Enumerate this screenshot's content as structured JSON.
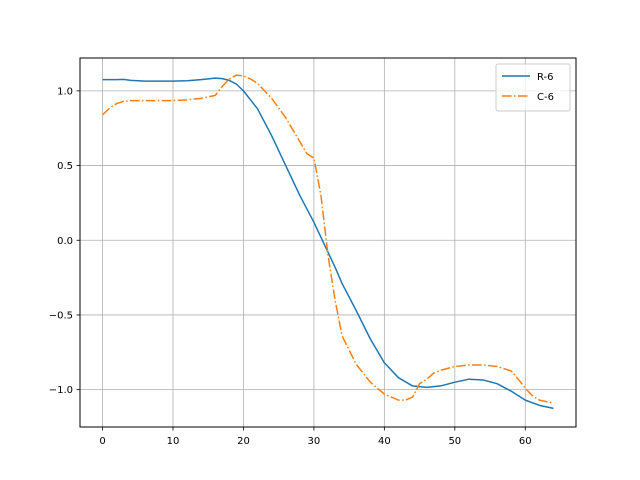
{
  "chart_data": {
    "type": "line",
    "title": "",
    "xlabel": "",
    "ylabel": "",
    "xlim": [
      -3.2,
      67.2
    ],
    "ylim": [
      -1.25,
      1.22
    ],
    "xticks": [
      0,
      10,
      20,
      30,
      40,
      50,
      60
    ],
    "xtick_labels": [
      "0",
      "10",
      "20",
      "30",
      "40",
      "50",
      "60"
    ],
    "yticks": [
      -1.0,
      -0.5,
      0.0,
      0.5,
      1.0
    ],
    "ytick_labels": [
      "−1.0",
      "−0.5",
      "0.0",
      "0.5",
      "1.0"
    ],
    "grid": true,
    "legend_position": "top-right",
    "series": [
      {
        "name": "R-6",
        "color": "#1f77b4",
        "style": "solid",
        "x": [
          0,
          2,
          3,
          4,
          6,
          8,
          10,
          12,
          14,
          16,
          17,
          18,
          19,
          20,
          22,
          24,
          26,
          28,
          30,
          31,
          32,
          33,
          34,
          36,
          38,
          40,
          42,
          44,
          46,
          48,
          50,
          52,
          54,
          56,
          58,
          60,
          62,
          64
        ],
        "y": [
          1.075,
          1.075,
          1.077,
          1.07,
          1.065,
          1.065,
          1.065,
          1.068,
          1.075,
          1.085,
          1.082,
          1.07,
          1.045,
          1.0,
          0.88,
          0.7,
          0.5,
          0.3,
          0.12,
          0.02,
          -0.08,
          -0.18,
          -0.29,
          -0.47,
          -0.66,
          -0.82,
          -0.92,
          -0.975,
          -0.985,
          -0.975,
          -0.95,
          -0.93,
          -0.935,
          -0.96,
          -1.01,
          -1.07,
          -1.105,
          -1.125
        ]
      },
      {
        "name": "C-6",
        "color": "#ff7f0e",
        "style": "dashdot",
        "x": [
          0,
          1,
          2,
          3,
          4,
          6,
          8,
          10,
          12,
          14,
          16,
          17,
          18,
          19,
          20,
          21,
          22,
          24,
          26,
          28,
          29,
          30,
          31,
          32,
          33,
          34,
          36,
          38,
          40,
          42,
          43,
          44,
          45,
          46,
          47,
          48,
          50,
          52,
          54,
          56,
          58,
          59,
          60,
          61,
          62,
          64
        ],
        "y": [
          0.84,
          0.885,
          0.915,
          0.93,
          0.935,
          0.935,
          0.935,
          0.935,
          0.94,
          0.95,
          0.97,
          1.03,
          1.08,
          1.105,
          1.1,
          1.08,
          1.05,
          0.95,
          0.82,
          0.66,
          0.58,
          0.55,
          0.3,
          -0.1,
          -0.4,
          -0.64,
          -0.83,
          -0.95,
          -1.03,
          -1.07,
          -1.07,
          -1.05,
          -0.96,
          -0.93,
          -0.89,
          -0.87,
          -0.845,
          -0.835,
          -0.835,
          -0.845,
          -0.875,
          -0.93,
          -0.99,
          -1.04,
          -1.07,
          -1.09
        ]
      }
    ]
  }
}
